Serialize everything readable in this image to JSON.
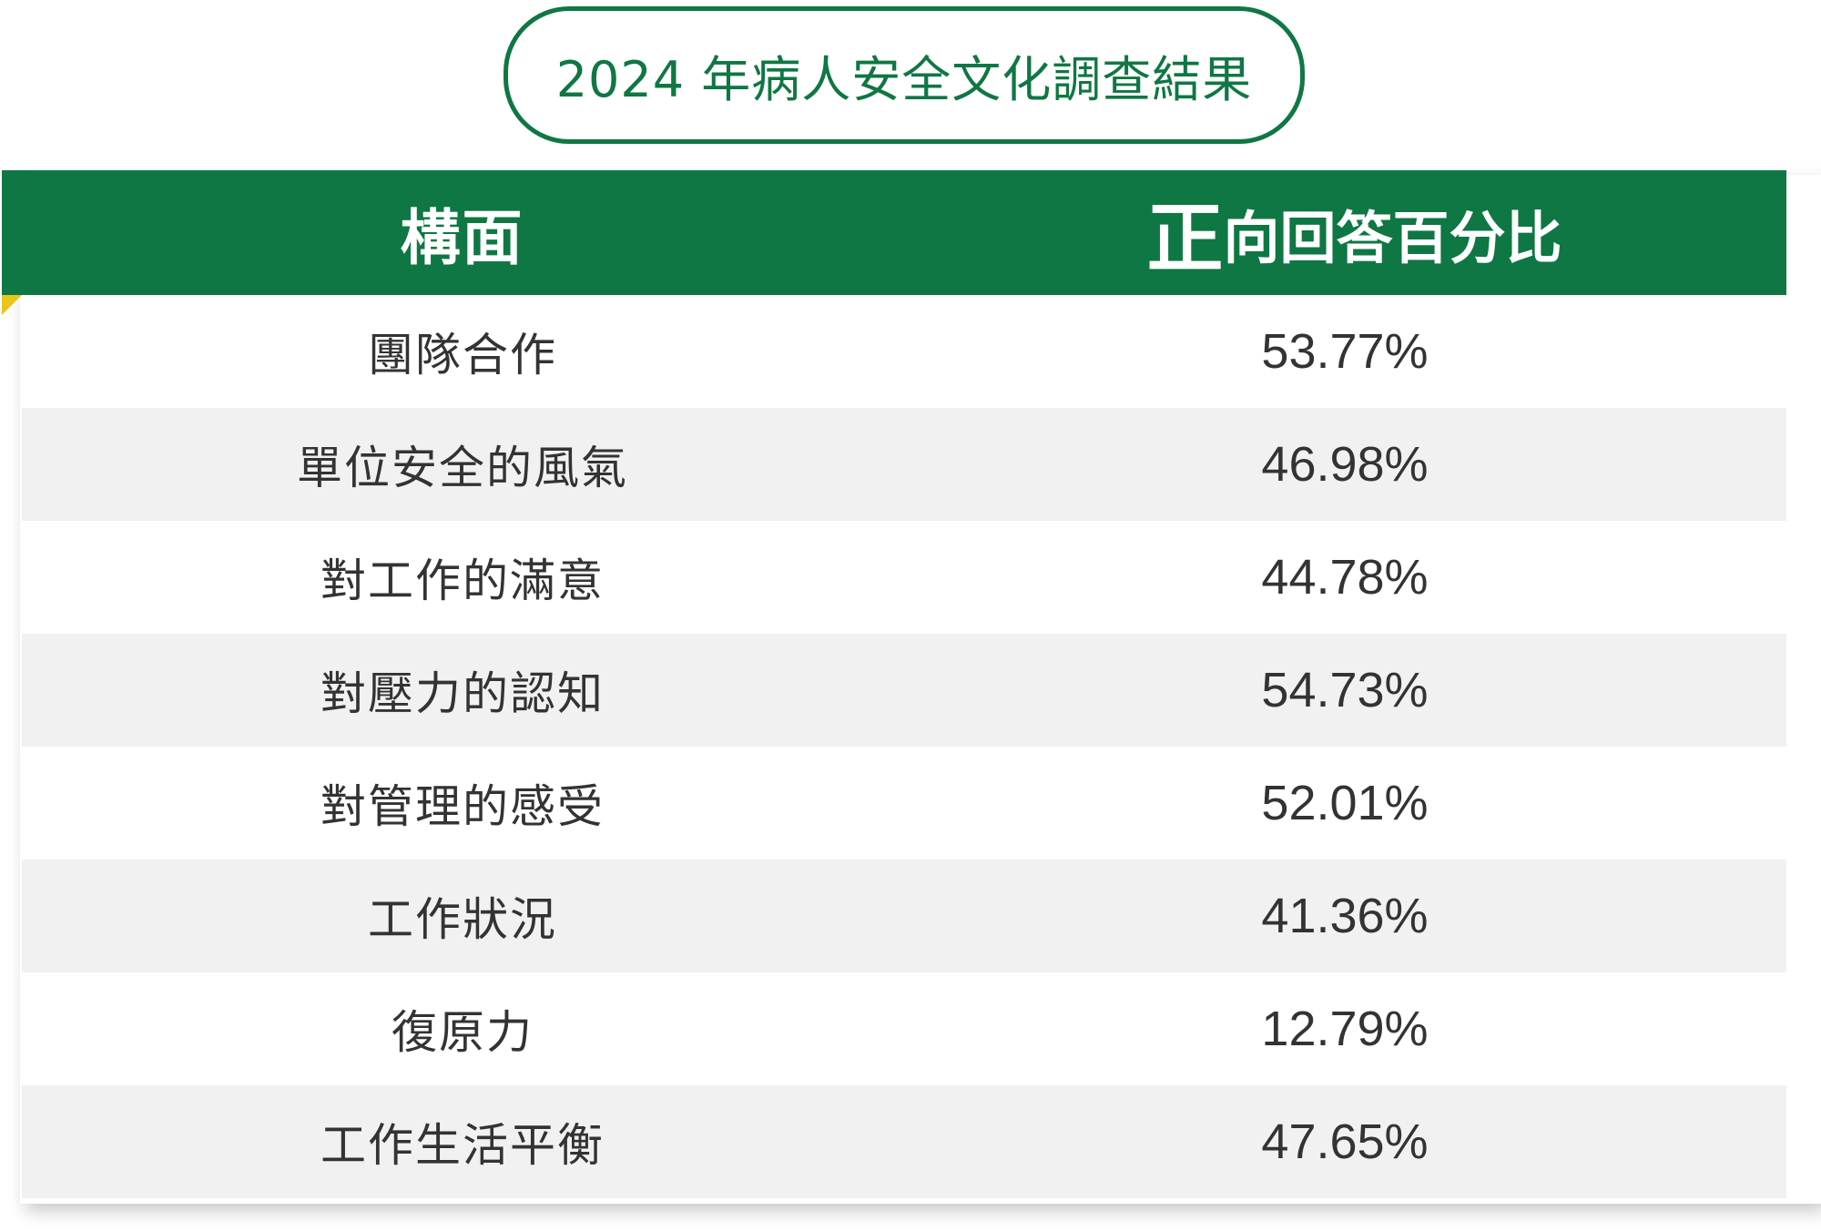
{
  "title": "2024 年病人安全文化調查結果",
  "header": {
    "dimension_label": "構面",
    "percent_label_first": "正",
    "percent_label_rest": "向回答百分比"
  },
  "rows": [
    {
      "dimension": "團隊合作",
      "percent": "53.77%"
    },
    {
      "dimension": "單位安全的風氣",
      "percent": "46.98%"
    },
    {
      "dimension": "對工作的滿意",
      "percent": "44.78%"
    },
    {
      "dimension": "對壓力的認知",
      "percent": "54.73%"
    },
    {
      "dimension": "對管理的感受",
      "percent": "52.01%"
    },
    {
      "dimension": "工作狀況",
      "percent": "41.36%"
    },
    {
      "dimension": "復原力",
      "percent": "12.79%"
    },
    {
      "dimension": "工作生活平衡",
      "percent": "47.65%"
    }
  ],
  "colors": {
    "brand_green": "#0f7743",
    "stripe_gray": "#f1f1f1",
    "text_dark": "#333333",
    "accent_yellow": "#e8c61a"
  },
  "chart_data": {
    "type": "table",
    "title": "2024 年病人安全文化調查結果",
    "columns": [
      "構面",
      "正向回答百分比"
    ],
    "categories": [
      "團隊合作",
      "單位安全的風氣",
      "對工作的滿意",
      "對壓力的認知",
      "對管理的感受",
      "工作狀況",
      "復原力",
      "工作生活平衡"
    ],
    "values": [
      53.77,
      46.98,
      44.78,
      54.73,
      52.01,
      41.36,
      12.79,
      47.65
    ],
    "unit": "%"
  }
}
